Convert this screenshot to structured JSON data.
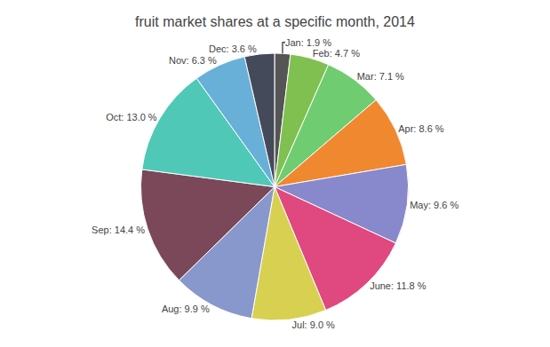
{
  "chart_data": {
    "type": "pie",
    "title": "fruit market shares at a specific month, 2014",
    "categories": [
      "Jan",
      "Feb",
      "Mar",
      "Apr",
      "May",
      "June",
      "Jul",
      "Aug",
      "Sep",
      "Oct",
      "Nov",
      "Dec"
    ],
    "values": [
      1.9,
      4.7,
      7.1,
      8.6,
      9.6,
      11.8,
      9.0,
      9.9,
      14.4,
      13.0,
      6.3,
      3.6
    ],
    "value_labels": [
      "Jan: 1.9 %",
      "Feb: 4.7 %",
      "Mar: 7.1 %",
      "Apr: 8.6 %",
      "May: 9.6 %",
      "June: 11.8 %",
      "Jul: 9.0 %",
      "Aug: 9.9 %",
      "Sep: 14.4 %",
      "Oct: 13.0 %",
      "Nov: 6.3 %",
      "Dec: 3.6 %"
    ],
    "colors": [
      "#555555",
      "#80c050",
      "#70cc70",
      "#f08830",
      "#8888cc",
      "#e04880",
      "#d8d050",
      "#8898cc",
      "#7a4858",
      "#50c8b8",
      "#68b0d8",
      "#454a5a"
    ],
    "data_labels": true
  }
}
